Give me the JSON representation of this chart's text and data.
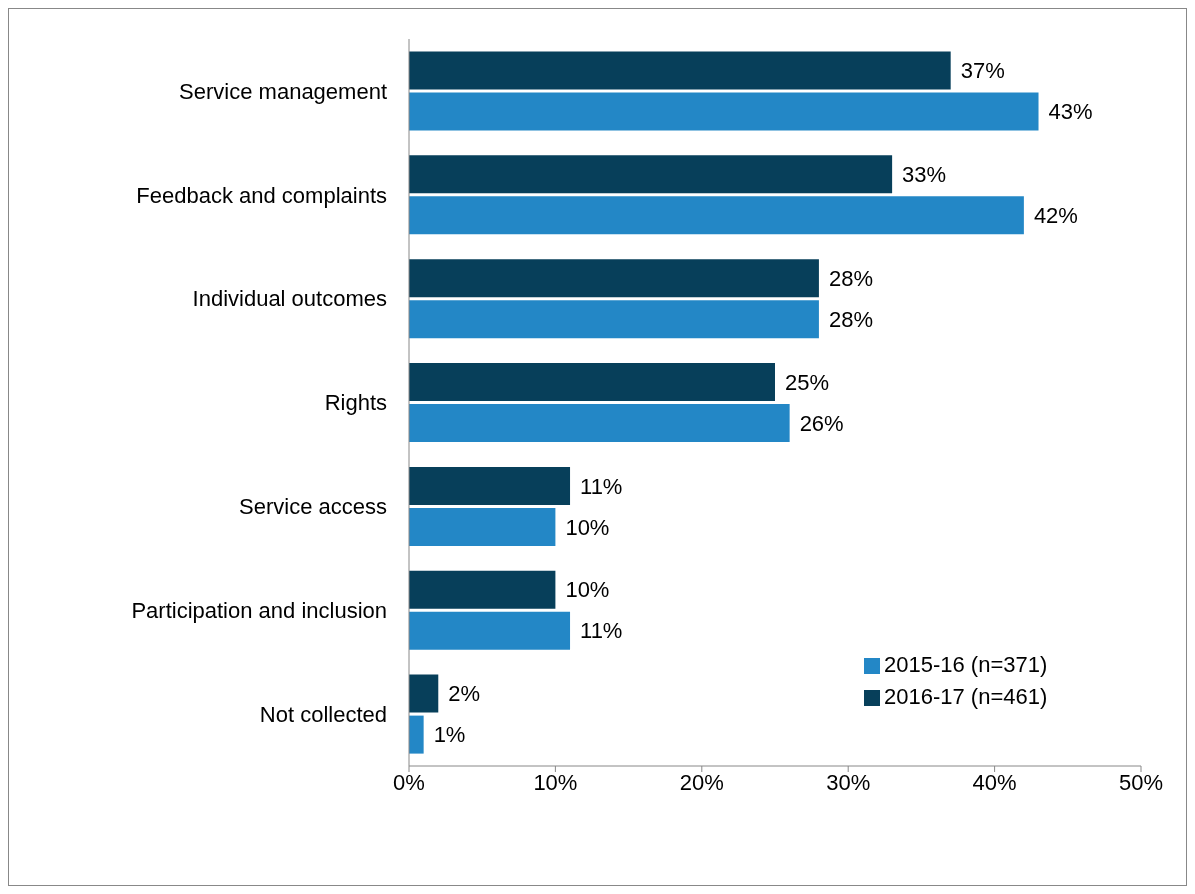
{
  "chart_data": {
    "type": "bar",
    "orientation": "horizontal",
    "categories": [
      "Service management",
      "Feedback and complaints",
      "Individual outcomes",
      "Rights",
      "Service access",
      "Participation and inclusion",
      "Not collected"
    ],
    "series": [
      {
        "name": "2016-17 (n=461)",
        "color": "#073f5a",
        "values": [
          37,
          33,
          28,
          25,
          11,
          10,
          2
        ],
        "value_labels": [
          "37%",
          "33%",
          "28%",
          "25%",
          "11%",
          "10%",
          "2%"
        ]
      },
      {
        "name": "2015-16 (n=371)",
        "color": "#2387c6",
        "values": [
          43,
          42,
          28,
          26,
          10,
          11,
          1
        ],
        "value_labels": [
          "43%",
          "42%",
          "28%",
          "26%",
          "10%",
          "11%",
          "1%"
        ]
      }
    ],
    "xlim": [
      0,
      50
    ],
    "xticks": [
      {
        "value": 0,
        "label": "0%"
      },
      {
        "value": 10,
        "label": "10%"
      },
      {
        "value": 20,
        "label": "20%"
      },
      {
        "value": 30,
        "label": "30%"
      },
      {
        "value": 40,
        "label": "40%"
      },
      {
        "value": 50,
        "label": "50%"
      }
    ],
    "grid": false,
    "legend": "bottom right"
  }
}
